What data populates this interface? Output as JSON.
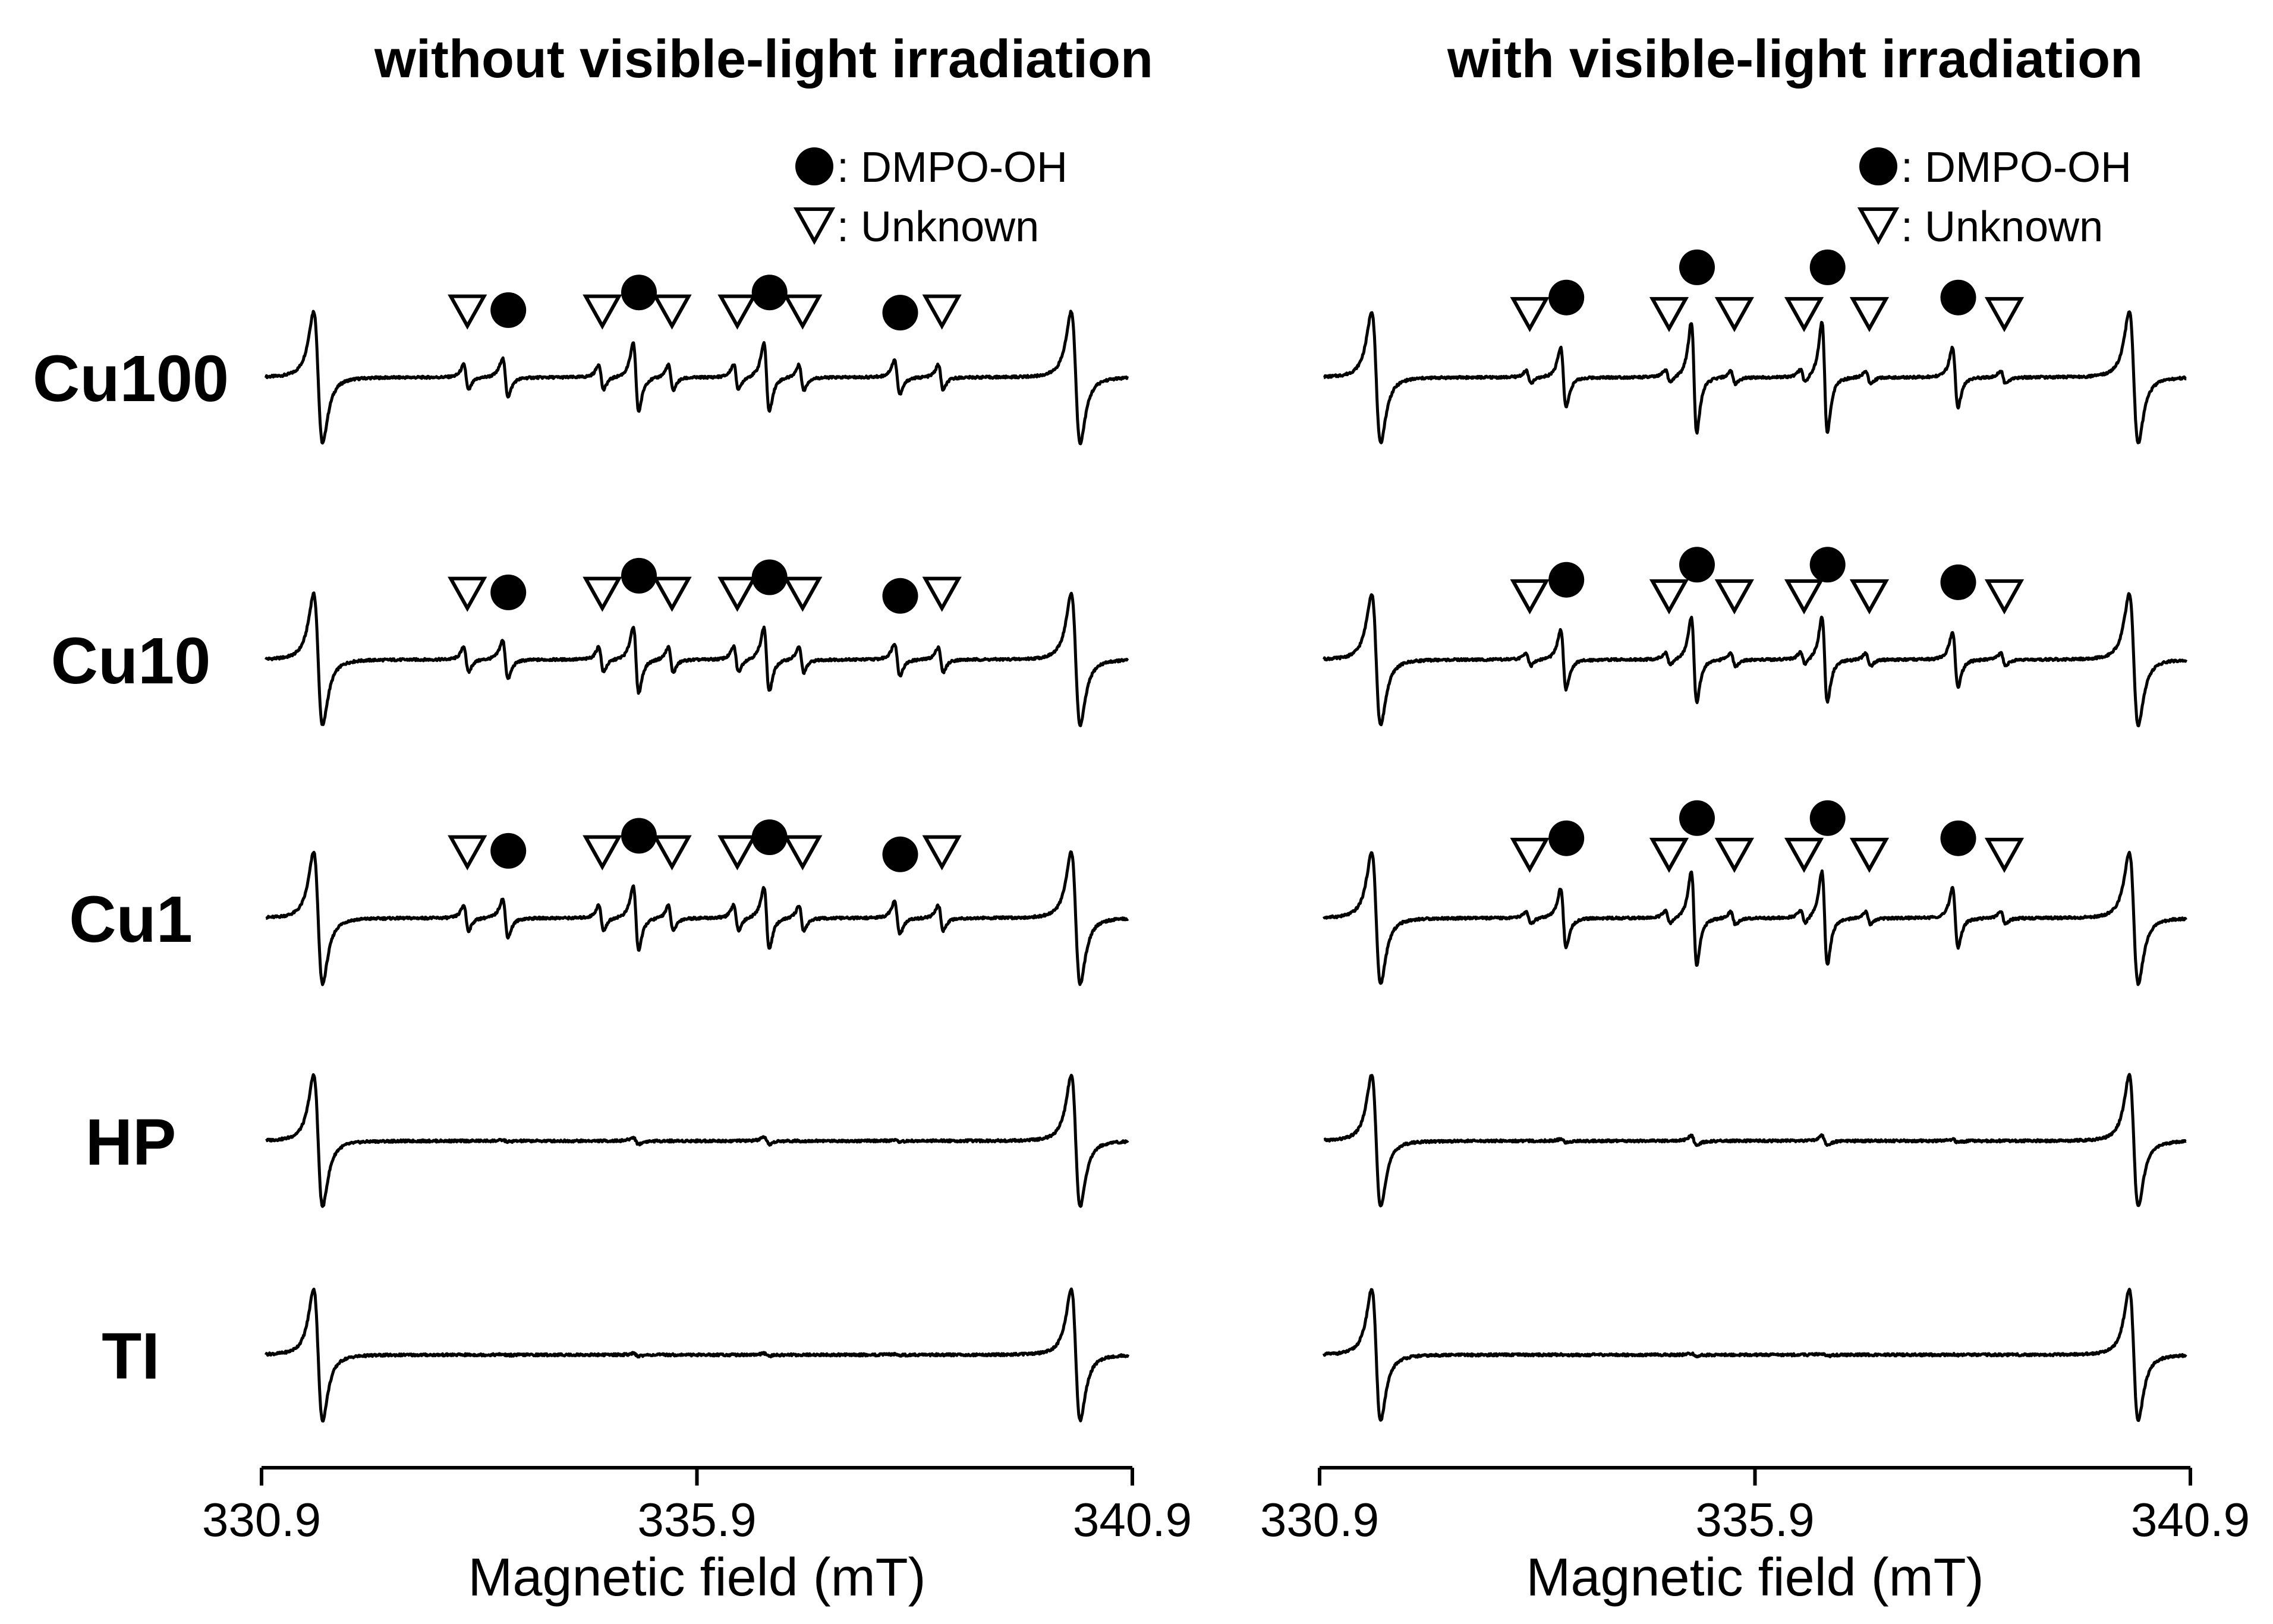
{
  "chart_data": {
    "type": "line",
    "description_style": "EPR spectra, two panels",
    "x_unit": "mT",
    "panels": [
      {
        "title": "without visible-light irradiation",
        "xlabel": "Magnetic field (mT)",
        "xlim": [
          330.9,
          340.9
        ],
        "xticks": [
          "330.9",
          "335.9",
          "340.9"
        ],
        "legend": [
          {
            "marker": "filled-circle",
            "label": ": DMPO-OH"
          },
          {
            "marker": "open-down-triangle",
            "label": ": Unknown"
          }
        ],
        "series": [
          {
            "name": "Cu100",
            "reference_peak_x": [
              331.55,
              340.25
            ],
            "dmpo_oh_x": [
              333.7,
              335.2,
              336.7,
              338.2
            ],
            "dmpo_oh_rel_amp": [
              0.45,
              0.8,
              0.8,
              0.4
            ],
            "unknown_x": [
              333.25,
              334.8,
              335.6,
              336.35,
              337.1,
              338.7
            ],
            "unknown_rel_amp": [
              0.3,
              0.3,
              0.3,
              0.3,
              0.3,
              0.3
            ]
          },
          {
            "name": "Cu10",
            "reference_peak_x": [
              331.55,
              340.25
            ],
            "dmpo_oh_x": [
              333.7,
              335.2,
              336.7,
              338.2
            ],
            "dmpo_oh_rel_amp": [
              0.45,
              0.78,
              0.75,
              0.38
            ],
            "unknown_x": [
              333.25,
              334.8,
              335.6,
              336.35,
              337.1,
              338.7
            ],
            "unknown_rel_amp": [
              0.3,
              0.3,
              0.3,
              0.3,
              0.3,
              0.3
            ]
          },
          {
            "name": "Cu1",
            "reference_peak_x": [
              331.55,
              340.25
            ],
            "dmpo_oh_x": [
              333.7,
              335.2,
              336.7,
              338.2
            ],
            "dmpo_oh_rel_amp": [
              0.45,
              0.75,
              0.72,
              0.38
            ],
            "unknown_x": [
              333.25,
              334.8,
              335.6,
              336.35,
              337.1,
              338.7
            ],
            "unknown_rel_amp": [
              0.3,
              0.3,
              0.3,
              0.3,
              0.3,
              0.3
            ]
          },
          {
            "name": "HP",
            "reference_peak_x": [
              331.55,
              340.25
            ],
            "dmpo_oh_x": [
              333.7,
              335.2,
              336.7,
              338.2
            ],
            "dmpo_oh_rel_amp": [
              0.02,
              0.08,
              0.08,
              0.02
            ],
            "unknown_x": [],
            "unknown_rel_amp": []
          },
          {
            "name": "TI",
            "reference_peak_x": [
              331.55,
              340.25
            ],
            "dmpo_oh_x": [
              333.7,
              335.2,
              336.7,
              338.2
            ],
            "dmpo_oh_rel_amp": [
              0.01,
              0.03,
              0.03,
              0.01
            ],
            "unknown_x": [],
            "unknown_rel_amp": []
          }
        ]
      },
      {
        "title": "with visible-light irradiation",
        "xlabel": "Magnetic field (mT)",
        "xlim": [
          330.9,
          340.9
        ],
        "xticks": [
          "330.9",
          "335.9",
          "340.9"
        ],
        "legend": [
          {
            "marker": "filled-circle",
            "label": ": DMPO-OH"
          },
          {
            "marker": "open-down-triangle",
            "label": ": Unknown"
          }
        ],
        "series": [
          {
            "name": "Cu100",
            "reference_peak_x": [
              331.55,
              340.25
            ],
            "dmpo_oh_x": [
              333.7,
              335.2,
              336.7,
              338.2
            ],
            "dmpo_oh_rel_amp": [
              0.7,
              1.3,
              1.3,
              0.7
            ],
            "unknown_x": [
              333.3,
              334.9,
              335.65,
              336.45,
              337.2,
              338.75
            ],
            "unknown_rel_amp": [
              0.15,
              0.15,
              0.15,
              0.15,
              0.15,
              0.15
            ]
          },
          {
            "name": "Cu10",
            "reference_peak_x": [
              331.55,
              340.25
            ],
            "dmpo_oh_x": [
              333.7,
              335.2,
              336.7,
              338.2
            ],
            "dmpo_oh_rel_amp": [
              0.7,
              1.0,
              1.0,
              0.65
            ],
            "unknown_x": [
              333.3,
              334.9,
              335.65,
              336.45,
              337.2,
              338.75
            ],
            "unknown_rel_amp": [
              0.15,
              0.15,
              0.15,
              0.15,
              0.15,
              0.15
            ]
          },
          {
            "name": "Cu1",
            "reference_peak_x": [
              331.55,
              340.25
            ],
            "dmpo_oh_x": [
              333.7,
              335.2,
              336.7,
              338.2
            ],
            "dmpo_oh_rel_amp": [
              0.7,
              1.1,
              1.1,
              0.7
            ],
            "unknown_x": [
              333.3,
              334.9,
              335.65,
              336.45,
              337.2,
              338.75
            ],
            "unknown_rel_amp": [
              0.15,
              0.15,
              0.15,
              0.15,
              0.15,
              0.15
            ]
          },
          {
            "name": "HP",
            "reference_peak_x": [
              331.55,
              340.25
            ],
            "dmpo_oh_x": [
              333.7,
              335.2,
              336.7,
              338.2
            ],
            "dmpo_oh_rel_amp": [
              0.04,
              0.12,
              0.12,
              0.04
            ],
            "unknown_x": [],
            "unknown_rel_amp": []
          },
          {
            "name": "TI",
            "reference_peak_x": [
              331.55,
              340.25
            ],
            "dmpo_oh_x": [
              333.7,
              335.2,
              336.7,
              338.2
            ],
            "dmpo_oh_rel_amp": [
              0.01,
              0.03,
              0.03,
              0.01
            ],
            "unknown_x": [],
            "unknown_rel_amp": []
          }
        ]
      }
    ]
  }
}
